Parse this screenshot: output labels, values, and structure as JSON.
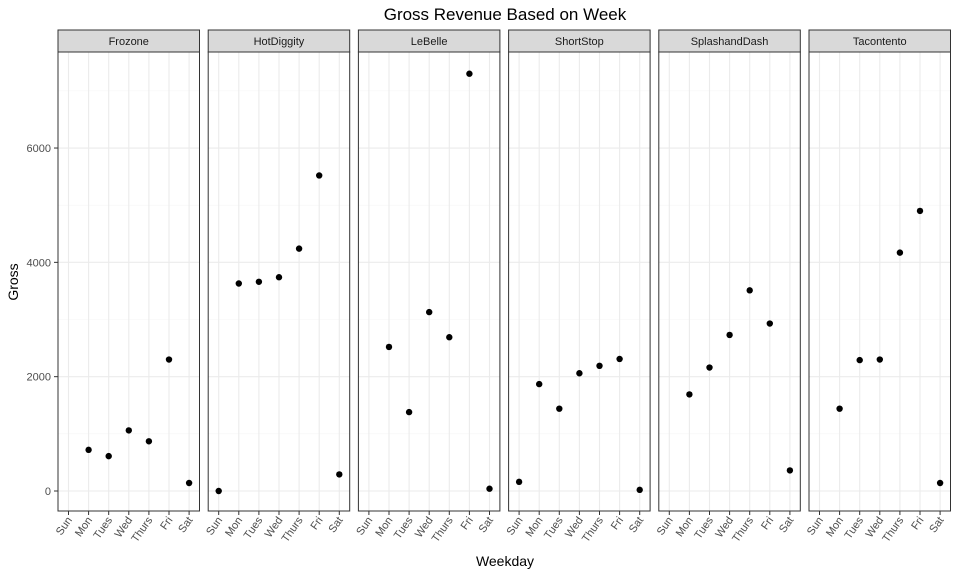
{
  "chart_data": {
    "type": "scatter",
    "title": "Gross Revenue Based on Week",
    "xlabel": "Weekday",
    "ylabel": "Gross",
    "x": [
      "Sun",
      "Mon",
      "Tues",
      "Wed",
      "Thurs",
      "Fri",
      "Sat"
    ],
    "yticks": [
      0,
      2000,
      4000,
      6000
    ],
    "ylim": [
      -350,
      7680
    ],
    "grid": true,
    "facets": [
      {
        "name": "Frozone",
        "values": [
          null,
          720,
          610,
          1060,
          870,
          2300,
          140
        ]
      },
      {
        "name": "HotDiggity",
        "values": [
          0,
          3630,
          3660,
          3740,
          4240,
          5520,
          290
        ]
      },
      {
        "name": "LeBelle",
        "values": [
          null,
          2520,
          1380,
          3130,
          2690,
          7300,
          40
        ]
      },
      {
        "name": "ShortStop",
        "values": [
          160,
          1870,
          1440,
          2060,
          2190,
          2310,
          20
        ]
      },
      {
        "name": "SplashandDash",
        "values": [
          null,
          1690,
          2160,
          2730,
          3510,
          2930,
          360
        ]
      },
      {
        "name": "Tacontento",
        "values": [
          null,
          1440,
          2290,
          2300,
          4170,
          4900,
          140
        ]
      }
    ],
    "colors": {
      "panel_border": "#333333",
      "strip_fill": "#d9d9d9",
      "grid_major": "#ebebeb",
      "grid_minor": "#f5f5f5",
      "point": "#000000"
    }
  }
}
